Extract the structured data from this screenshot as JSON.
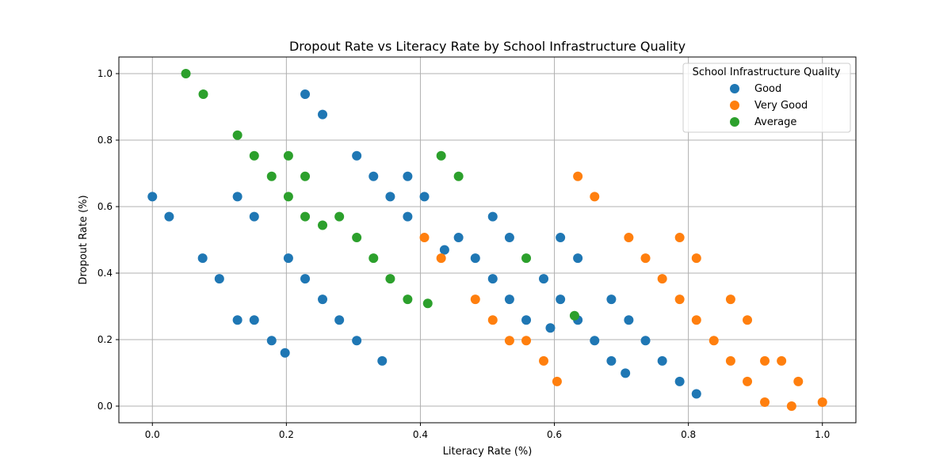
{
  "chart_data": {
    "type": "scatter",
    "title": "Dropout Rate vs Literacy Rate by School Infrastructure Quality",
    "xlabel": "Literacy Rate (%)",
    "ylabel": "Dropout Rate (%)",
    "xlim": [
      -0.05,
      1.05
    ],
    "ylim": [
      -0.05,
      1.05
    ],
    "xticks": [
      0.0,
      0.2,
      0.4,
      0.6,
      0.8,
      1.0
    ],
    "yticks": [
      0.0,
      0.2,
      0.4,
      0.6,
      0.8,
      1.0
    ],
    "tick_labels_x": [
      "0.0",
      "0.2",
      "0.4",
      "0.6",
      "0.8",
      "1.0"
    ],
    "tick_labels_y": [
      "0.0",
      "0.2",
      "0.4",
      "0.6",
      "0.8",
      "1.0"
    ],
    "grid": true,
    "legend": {
      "title": "School Infrastructure Quality",
      "placement": "top-right"
    },
    "series": [
      {
        "name": "Good",
        "color": "#1f77b4",
        "points": [
          [
            0.0,
            0.63
          ],
          [
            0.025,
            0.57
          ],
          [
            0.075,
            0.445
          ],
          [
            0.1,
            0.383
          ],
          [
            0.127,
            0.63
          ],
          [
            0.127,
            0.259
          ],
          [
            0.152,
            0.57
          ],
          [
            0.152,
            0.259
          ],
          [
            0.178,
            0.197
          ],
          [
            0.198,
            0.16
          ],
          [
            0.203,
            0.445
          ],
          [
            0.228,
            0.938
          ],
          [
            0.228,
            0.383
          ],
          [
            0.254,
            0.877
          ],
          [
            0.254,
            0.321
          ],
          [
            0.279,
            0.259
          ],
          [
            0.305,
            0.753
          ],
          [
            0.305,
            0.197
          ],
          [
            0.33,
            0.691
          ],
          [
            0.343,
            0.136
          ],
          [
            0.355,
            0.63
          ],
          [
            0.381,
            0.691
          ],
          [
            0.381,
            0.57
          ],
          [
            0.406,
            0.63
          ],
          [
            0.436,
            0.47
          ],
          [
            0.457,
            0.507
          ],
          [
            0.482,
            0.445
          ],
          [
            0.508,
            0.57
          ],
          [
            0.508,
            0.383
          ],
          [
            0.533,
            0.507
          ],
          [
            0.533,
            0.321
          ],
          [
            0.558,
            0.259
          ],
          [
            0.584,
            0.383
          ],
          [
            0.594,
            0.235
          ],
          [
            0.609,
            0.507
          ],
          [
            0.609,
            0.321
          ],
          [
            0.635,
            0.445
          ],
          [
            0.635,
            0.259
          ],
          [
            0.66,
            0.197
          ],
          [
            0.685,
            0.321
          ],
          [
            0.685,
            0.136
          ],
          [
            0.706,
            0.099
          ],
          [
            0.711,
            0.259
          ],
          [
            0.736,
            0.197
          ],
          [
            0.761,
            0.136
          ],
          [
            0.787,
            0.074
          ],
          [
            0.812,
            0.037
          ]
        ]
      },
      {
        "name": "Very Good",
        "color": "#ff7f0e",
        "points": [
          [
            0.406,
            0.507
          ],
          [
            0.431,
            0.445
          ],
          [
            0.482,
            0.321
          ],
          [
            0.508,
            0.259
          ],
          [
            0.533,
            0.197
          ],
          [
            0.558,
            0.197
          ],
          [
            0.584,
            0.136
          ],
          [
            0.604,
            0.074
          ],
          [
            0.635,
            0.691
          ],
          [
            0.66,
            0.63
          ],
          [
            0.711,
            0.507
          ],
          [
            0.736,
            0.445
          ],
          [
            0.761,
            0.383
          ],
          [
            0.787,
            0.507
          ],
          [
            0.787,
            0.321
          ],
          [
            0.812,
            0.445
          ],
          [
            0.812,
            0.259
          ],
          [
            0.838,
            0.197
          ],
          [
            0.863,
            0.321
          ],
          [
            0.863,
            0.136
          ],
          [
            0.888,
            0.259
          ],
          [
            0.888,
            0.074
          ],
          [
            0.914,
            0.136
          ],
          [
            0.914,
            0.012
          ],
          [
            0.939,
            0.136
          ],
          [
            0.954,
            0.0
          ],
          [
            0.964,
            0.074
          ],
          [
            1.0,
            0.012
          ]
        ]
      },
      {
        "name": "Average",
        "color": "#2ca02c",
        "points": [
          [
            0.05,
            1.0
          ],
          [
            0.076,
            0.938
          ],
          [
            0.127,
            0.815
          ],
          [
            0.152,
            0.753
          ],
          [
            0.178,
            0.691
          ],
          [
            0.203,
            0.753
          ],
          [
            0.203,
            0.63
          ],
          [
            0.228,
            0.691
          ],
          [
            0.228,
            0.57
          ],
          [
            0.254,
            0.544
          ],
          [
            0.279,
            0.57
          ],
          [
            0.305,
            0.507
          ],
          [
            0.33,
            0.445
          ],
          [
            0.355,
            0.383
          ],
          [
            0.381,
            0.321
          ],
          [
            0.411,
            0.309
          ],
          [
            0.431,
            0.753
          ],
          [
            0.457,
            0.691
          ],
          [
            0.558,
            0.445
          ],
          [
            0.63,
            0.272
          ]
        ]
      }
    ]
  }
}
